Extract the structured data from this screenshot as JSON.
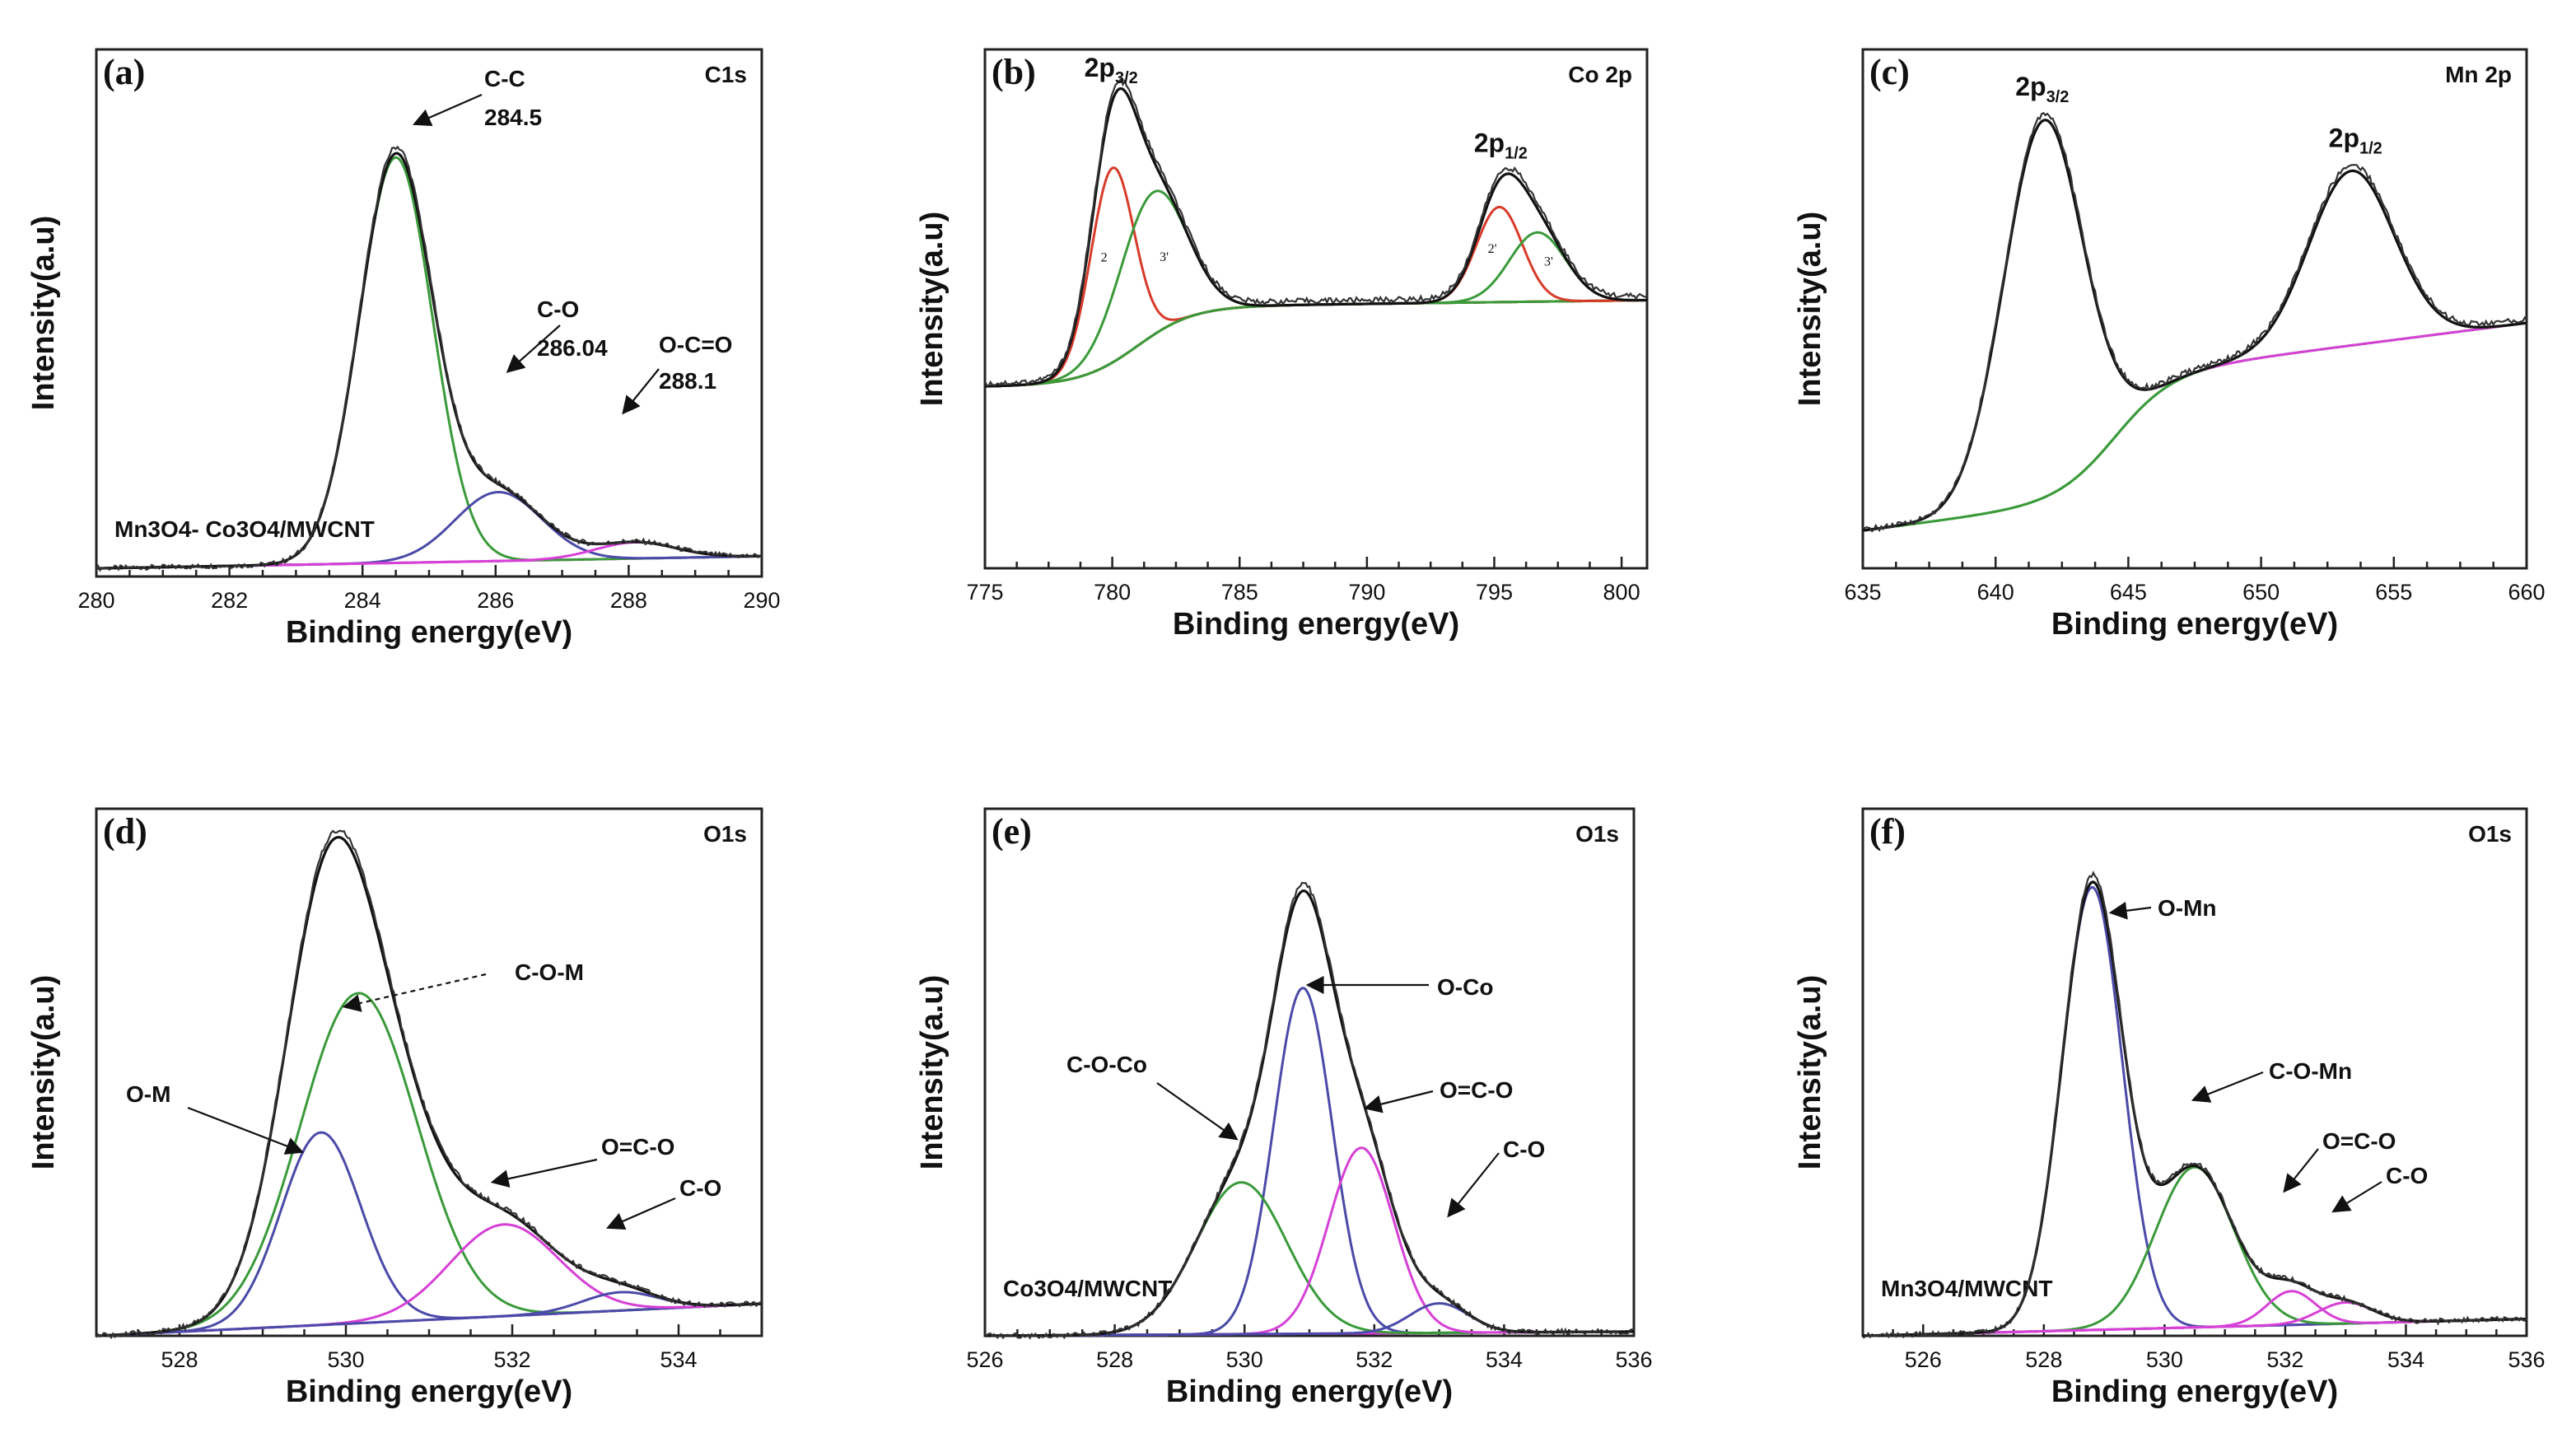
{
  "figure": {
    "ylabel": "Intensity(a.u)",
    "xlabel": "Binding energy(eV)"
  },
  "colors": {
    "envelope": "#111111",
    "green": "#3a9a3a",
    "red": "#d83a2a",
    "blue": "#4a4aa8",
    "magenta": "#d640d6"
  },
  "chart_data": [
    {
      "panel": "(a)",
      "type": "line",
      "title": "C1s",
      "xlabel": "Binding energy(eV)",
      "ylabel": "Intensity(a.u)",
      "xlim": [
        280,
        290
      ],
      "ylim": [
        0,
        1.3
      ],
      "xticks": [
        280,
        282,
        284,
        286,
        288,
        290
      ],
      "sample": "Mn3O4- Co3O4/MWCNT",
      "background": {
        "color": "magenta",
        "type": "linear",
        "y0": 0.02,
        "y1": 0.05
      },
      "components": [
        {
          "name": "C-C",
          "color": "green",
          "center": 284.5,
          "height": 1.0,
          "width": 0.55
        },
        {
          "name": "C-O",
          "color": "blue",
          "center": 286.04,
          "height": 0.17,
          "width": 0.65
        },
        {
          "name": "O-C=O",
          "color": "magenta",
          "center": 288.1,
          "height": 0.04,
          "width": 0.6
        }
      ],
      "annotations": [
        {
          "text": "C-C",
          "sub": "284.5",
          "x": 284.6,
          "y": 0.98
        },
        {
          "text": "C-O",
          "sub": "286.04",
          "x": 286.1,
          "y": 0.2
        },
        {
          "text": "O-C=O",
          "sub": "288.1",
          "x": 288.1,
          "y": 0.08
        }
      ]
    },
    {
      "panel": "(b)",
      "type": "line",
      "title": "Co 2p",
      "xlabel": "Binding energy(eV)",
      "ylabel": "Intensity(a.u)",
      "xlim": [
        775,
        801
      ],
      "ylim": [
        0,
        1.2
      ],
      "xticks": [
        775,
        780,
        785,
        790,
        795,
        800
      ],
      "background": {
        "color": "green",
        "type": "step",
        "y0": 0.42,
        "y1": 0.62,
        "edge": 781,
        "step": 0.18
      },
      "components": [
        {
          "name": "2",
          "color": "red",
          "center": 780.0,
          "height": 0.45,
          "width": 0.85
        },
        {
          "name": "3'",
          "color": "green",
          "center": 781.6,
          "height": 0.33,
          "width": 1.3
        },
        {
          "name": "2'",
          "color": "red",
          "center": 795.2,
          "height": 0.22,
          "width": 0.9
        },
        {
          "name": "3'",
          "color": "green",
          "center": 796.7,
          "height": 0.16,
          "width": 1.1
        }
      ],
      "peak_labels": [
        {
          "main": "2p",
          "sub": "3/2",
          "x": 780.0
        },
        {
          "main": "2p",
          "sub": "1/2",
          "x": 795.3
        }
      ]
    },
    {
      "panel": "(c)",
      "type": "line",
      "title": "Mn 2p",
      "xlabel": "Binding energy(eV)",
      "ylabel": "Intensity(a.u)",
      "xlim": [
        635,
        660
      ],
      "ylim": [
        0,
        1.1
      ],
      "xticks": [
        635,
        640,
        645,
        650,
        655,
        660
      ],
      "background": {
        "color": "green",
        "type": "step",
        "y0": 0.08,
        "y1": 0.52,
        "edge": 644.5,
        "step": 0.26
      },
      "components": [
        {
          "name": "2p3/2",
          "color": "magenta",
          "center": 641.8,
          "height": 0.8,
          "width": 1.5
        },
        {
          "name": "2p1/2",
          "color": "green",
          "center": 653.4,
          "height": 0.37,
          "width": 1.6
        }
      ],
      "peak_labels": [
        {
          "main": "2p",
          "sub": "3/2",
          "x": 641.8
        },
        {
          "main": "2p",
          "sub": "1/2",
          "x": 653.6
        }
      ]
    },
    {
      "panel": "(d)",
      "type": "line",
      "title": "O1s",
      "xlabel": "Binding energy(eV)",
      "ylabel": "Intensity(a.u)",
      "xlim": [
        527,
        535
      ],
      "ylim": [
        0,
        1.15
      ],
      "xticks": [
        528,
        530,
        532,
        534
      ],
      "background": {
        "color": "magenta",
        "type": "linear",
        "y0": 0.0,
        "y1": 0.07
      },
      "components": [
        {
          "name": "C-O-M",
          "color": "green",
          "center": 530.15,
          "height": 0.72,
          "width": 0.7
        },
        {
          "name": "O-M",
          "color": "blue",
          "center": 529.7,
          "height": 0.42,
          "width": 0.48
        },
        {
          "name": "O=C-O",
          "color": "magenta",
          "center": 531.9,
          "height": 0.2,
          "width": 0.65
        },
        {
          "name": "C-O",
          "color": "blue",
          "center": 533.3,
          "height": 0.04,
          "width": 0.45
        }
      ],
      "annotations": [
        {
          "text": "C-O-M"
        },
        {
          "text": "O-M"
        },
        {
          "text": "O=C-O"
        },
        {
          "text": "C-O"
        }
      ]
    },
    {
      "panel": "(e)",
      "type": "line",
      "title": "O1s",
      "xlabel": "Binding energy(eV)",
      "ylabel": "Intensity(a.u)",
      "xlim": [
        526,
        536
      ],
      "ylim": [
        0,
        1.25
      ],
      "xticks": [
        526,
        528,
        530,
        532,
        534,
        536
      ],
      "sample": "Co3O4/MWCNT",
      "background": {
        "color": "magenta",
        "type": "linear",
        "y0": 0.0,
        "y1": 0.01
      },
      "components": [
        {
          "name": "O-Co",
          "color": "blue",
          "center": 530.9,
          "height": 0.82,
          "width": 0.45
        },
        {
          "name": "C-O-Co",
          "color": "green",
          "center": 529.95,
          "height": 0.36,
          "width": 0.7
        },
        {
          "name": "O=C-O",
          "color": "magenta",
          "center": 531.8,
          "height": 0.44,
          "width": 0.5
        },
        {
          "name": "C-O",
          "color": "blue",
          "center": 533.0,
          "height": 0.07,
          "width": 0.45
        }
      ],
      "annotations": [
        {
          "text": "O-Co"
        },
        {
          "text": "C-O-Co"
        },
        {
          "text": "O=C-O"
        },
        {
          "text": "C-O"
        }
      ]
    },
    {
      "panel": "(f)",
      "type": "line",
      "title": "O1s",
      "xlabel": "Binding energy(eV)",
      "ylabel": "Intensity(a.u)",
      "xlim": [
        525,
        536
      ],
      "ylim": [
        0,
        1.25
      ],
      "xticks": [
        526,
        528,
        530,
        532,
        534,
        536
      ],
      "sample": "Mn3O4/MWCNT",
      "background": {
        "color": "magenta",
        "type": "linear",
        "y0": 0.0,
        "y1": 0.04
      },
      "components": [
        {
          "name": "O-Mn",
          "color": "blue",
          "center": 528.8,
          "height": 1.05,
          "width": 0.5
        },
        {
          "name": "C-O-Mn",
          "color": "green",
          "center": 530.5,
          "height": 0.38,
          "width": 0.65
        },
        {
          "name": "O=C-O",
          "color": "magenta",
          "center": 532.1,
          "height": 0.08,
          "width": 0.4
        },
        {
          "name": "C-O",
          "color": "magenta",
          "center": 533.0,
          "height": 0.05,
          "width": 0.45
        }
      ],
      "annotations": [
        {
          "text": "O-Mn"
        },
        {
          "text": "C-O-Mn"
        },
        {
          "text": "O=C-O"
        },
        {
          "text": "C-O"
        }
      ]
    }
  ]
}
